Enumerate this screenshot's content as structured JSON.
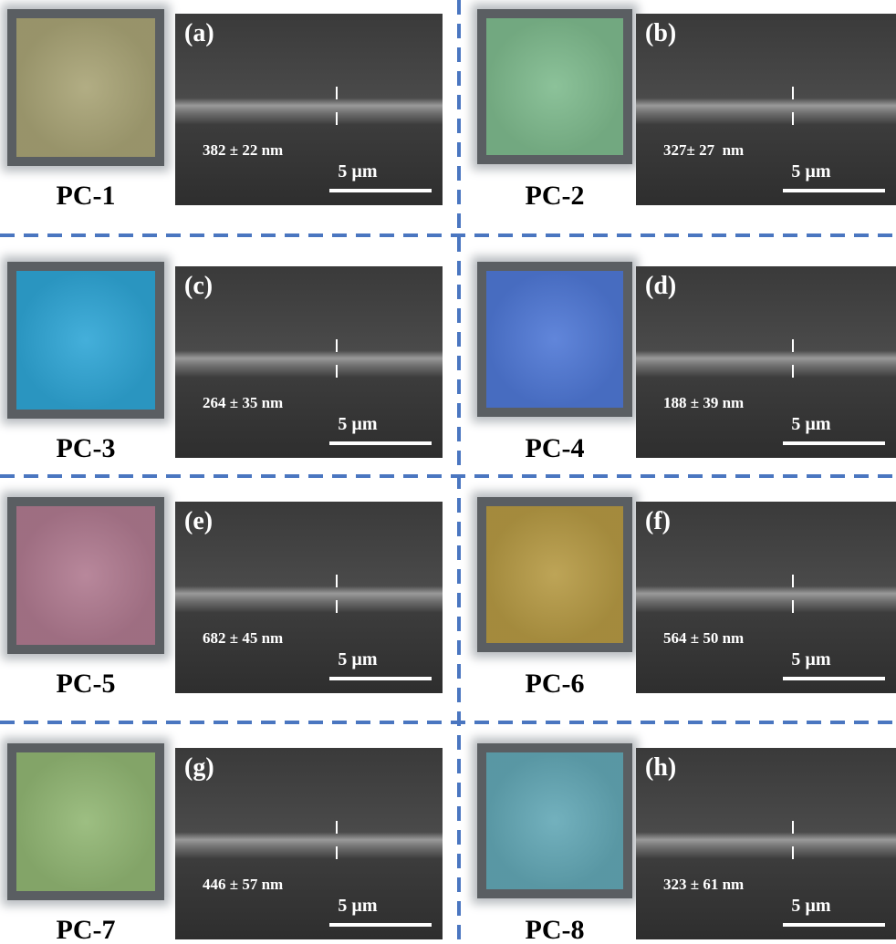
{
  "panels": [
    {
      "sample": "PC-1",
      "label": "(a)",
      "thickness": "382 ± 22 nm",
      "scale": "5 µm",
      "color": "#a9a476"
    },
    {
      "sample": "PC-2",
      "label": "(b)",
      "thickness": "327± 27  nm",
      "scale": "5 µm",
      "color": "#7fbb8e"
    },
    {
      "sample": "PC-3",
      "label": "(c)",
      "thickness": "264 ± 35 nm",
      "scale": "5 µm",
      "color": "#2fa6d6"
    },
    {
      "sample": "PC-4",
      "label": "(d)",
      "thickness": "188 ± 39 nm",
      "scale": "5 µm",
      "color": "#4f78d6"
    },
    {
      "sample": "PC-5",
      "label": "(e)",
      "thickness": "682 ± 45 nm",
      "scale": "5 µm",
      "color": "#b07a90"
    },
    {
      "sample": "PC-6",
      "label": "(f)",
      "thickness": "564 ± 50 nm",
      "scale": "5 µm",
      "color": "#b69a44"
    },
    {
      "sample": "PC-7",
      "label": "(g)",
      "thickness": "446 ± 57 nm",
      "scale": "5 µm",
      "color": "#92b774"
    },
    {
      "sample": "PC-8",
      "label": "(h)",
      "thickness": "323 ± 61 nm",
      "scale": "5 µm",
      "color": "#63a8b6"
    }
  ]
}
